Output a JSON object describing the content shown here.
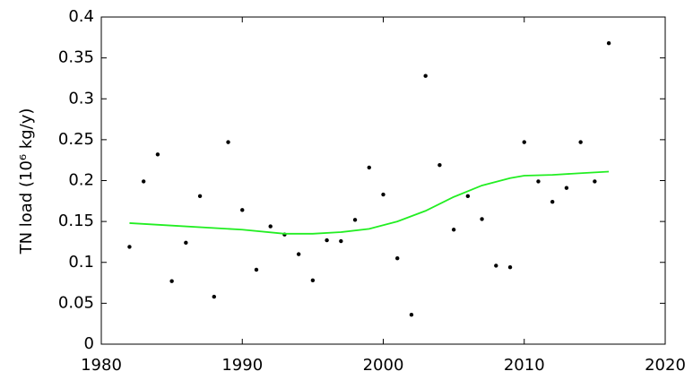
{
  "chart_data": {
    "type": "scatter",
    "y_label": "TN load (10⁶ kg/y)",
    "xlim": [
      1980,
      2020
    ],
    "xticks": [
      1980,
      1990,
      2000,
      2010,
      2020
    ],
    "ylim": [
      0,
      0.4
    ],
    "yticks": [
      0,
      0.05,
      0.1,
      0.15,
      0.2,
      0.25,
      0.3,
      0.35,
      0.4
    ],
    "grid": false,
    "series": [
      {
        "kind": "points",
        "color": "#000000",
        "x": [
          1982,
          1983,
          1984,
          1985,
          1986,
          1987,
          1988,
          1989,
          1990,
          1991,
          1992,
          1993,
          1994,
          1995,
          1996,
          1997,
          1998,
          1999,
          2000,
          2001,
          2002,
          2003,
          2004,
          2005,
          2006,
          2007,
          2008,
          2009,
          2010,
          2011,
          2012,
          2013,
          2014,
          2015,
          2016
        ],
        "values": [
          0.119,
          0.199,
          0.232,
          0.077,
          0.124,
          0.181,
          0.058,
          0.247,
          0.164,
          0.091,
          0.144,
          0.134,
          0.11,
          0.078,
          0.127,
          0.126,
          0.152,
          0.216,
          0.183,
          0.105,
          0.036,
          0.328,
          0.219,
          0.14,
          0.181,
          0.153,
          0.096,
          0.094,
          0.247,
          0.199,
          0.174,
          0.191,
          0.247,
          0.199,
          0.368
        ]
      },
      {
        "kind": "line",
        "color": "#22ee22",
        "x": [
          1982,
          1985,
          1990,
          1993,
          1995,
          1997,
          1999,
          2001,
          2003,
          2005,
          2007,
          2009,
          2010,
          2012,
          2014,
          2016
        ],
        "values": [
          0.148,
          0.145,
          0.14,
          0.135,
          0.135,
          0.137,
          0.141,
          0.15,
          0.163,
          0.18,
          0.194,
          0.203,
          0.206,
          0.207,
          0.209,
          0.211
        ]
      }
    ]
  }
}
